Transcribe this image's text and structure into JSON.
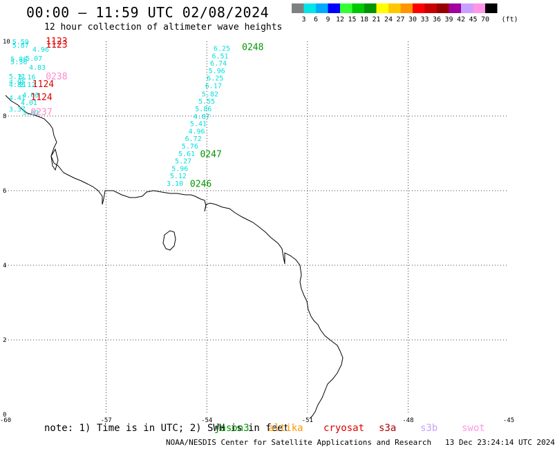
{
  "header": {
    "title": "00:00 – 11:59 UTC 02/08/2024",
    "subtitle": "12 hour collection of altimeter wave heights"
  },
  "colorbar": {
    "labels": [
      "3",
      "6",
      "9",
      "12",
      "15",
      "18",
      "21",
      "24",
      "27",
      "30",
      "33",
      "36",
      "39",
      "42",
      "45",
      "70"
    ],
    "unit": "(ft)",
    "colors": [
      "#808080",
      "#00e6e6",
      "#00aaff",
      "#0000ff",
      "#33ff33",
      "#00c800",
      "#009600",
      "#ffff00",
      "#ffc800",
      "#ff9600",
      "#ff0000",
      "#c80000",
      "#960000",
      "#a000a0",
      "#c8a0ff",
      "#ff96e6",
      "#000000"
    ]
  },
  "map": {
    "x_ticks": [
      "-60",
      "-57",
      "-54",
      "-51",
      "-48",
      "-45"
    ],
    "y_ticks": [
      "0",
      "2",
      "4",
      "6",
      "8",
      "10"
    ],
    "lon_range": [
      -60,
      -45
    ],
    "lat_range": [
      0,
      10
    ]
  },
  "colors": {
    "jason3": "#00dddd",
    "track_label_green": "#009600",
    "track_label_red": "#dd0000",
    "track_label_pink": "#ff88cc"
  },
  "tracks": {
    "left_values": [
      {
        "t": "5.59",
        "lon": -59.8,
        "lat": 9.93
      },
      {
        "t": "5.87",
        "lon": -59.8,
        "lat": 9.83
      },
      {
        "t": "4.96",
        "lon": -59.2,
        "lat": 9.72
      },
      {
        "t": "5.07",
        "lon": -59.4,
        "lat": 9.48
      },
      {
        "t": "5.86",
        "lon": -59.85,
        "lat": 9.46
      },
      {
        "t": "5.36",
        "lon": -59.85,
        "lat": 9.39
      },
      {
        "t": "4.83",
        "lon": -59.3,
        "lat": 9.24
      },
      {
        "t": "5.11",
        "lon": -59.9,
        "lat": 9.0
      },
      {
        "t": "5.16",
        "lon": -59.6,
        "lat": 8.98
      },
      {
        "t": "4.95",
        "lon": -59.9,
        "lat": 8.85
      },
      {
        "t": "4.85",
        "lon": -59.9,
        "lat": 8.78
      },
      {
        "t": "5.12",
        "lon": -59.6,
        "lat": 8.78
      },
      {
        "t": "4.00",
        "lon": -59.5,
        "lat": 8.5
      },
      {
        "t": "4.41",
        "lon": -59.9,
        "lat": 8.43
      },
      {
        "t": "4.01",
        "lon": -59.55,
        "lat": 8.3
      },
      {
        "t": "3.37",
        "lon": -59.9,
        "lat": 8.12
      },
      {
        "t": "3.02",
        "lon": -59.5,
        "lat": 8.03
      }
    ],
    "right_values": [
      {
        "t": "6.25",
        "lon": -53.8,
        "lat": 9.75
      },
      {
        "t": "6.51",
        "lon": -53.85,
        "lat": 9.55
      },
      {
        "t": "6.74",
        "lon": -53.9,
        "lat": 9.35
      },
      {
        "t": "5.96",
        "lon": -53.95,
        "lat": 9.15
      },
      {
        "t": "6.25",
        "lon": -54.0,
        "lat": 8.95
      },
      {
        "t": "6.17",
        "lon": -54.05,
        "lat": 8.75
      },
      {
        "t": "5.82",
        "lon": -54.15,
        "lat": 8.53
      },
      {
        "t": "5.55",
        "lon": -54.25,
        "lat": 8.33
      },
      {
        "t": "5.86",
        "lon": -54.35,
        "lat": 8.13
      },
      {
        "t": "4.87",
        "lon": -54.4,
        "lat": 7.93
      },
      {
        "t": "5.41",
        "lon": -54.5,
        "lat": 7.73
      },
      {
        "t": "4.96",
        "lon": -54.55,
        "lat": 7.53
      },
      {
        "t": "6.72",
        "lon": -54.65,
        "lat": 7.33
      },
      {
        "t": "5.76",
        "lon": -54.75,
        "lat": 7.13
      },
      {
        "t": "5.61",
        "lon": -54.85,
        "lat": 6.93
      },
      {
        "t": "5.27",
        "lon": -54.95,
        "lat": 6.73
      },
      {
        "t": "5.96",
        "lon": -55.05,
        "lat": 6.53
      },
      {
        "t": "5.12",
        "lon": -55.1,
        "lat": 6.33
      },
      {
        "t": "3.10",
        "lon": -55.2,
        "lat": 6.13
      }
    ],
    "time_labels": [
      {
        "t": "1123",
        "lon": -58.8,
        "lat": 9.93,
        "color": "#dd0000"
      },
      {
        "t": "1123",
        "lon": -58.8,
        "lat": 9.83,
        "color": "#dd0000"
      },
      {
        "t": "0248",
        "lon": -52.95,
        "lat": 9.77,
        "color": "#009600"
      },
      {
        "t": "0238",
        "lon": -58.8,
        "lat": 8.98,
        "color": "#ff88cc"
      },
      {
        "t": "1124",
        "lon": -59.2,
        "lat": 8.78,
        "color": "#dd0000"
      },
      {
        "t": "1124",
        "lon": -59.25,
        "lat": 8.43,
        "color": "#dd0000"
      },
      {
        "t": "0237",
        "lon": -59.25,
        "lat": 8.03,
        "color": "#ff88cc"
      },
      {
        "t": "0247",
        "lon": -54.2,
        "lat": 6.9,
        "color": "#009600"
      },
      {
        "t": "0246",
        "lon": -54.5,
        "lat": 6.1,
        "color": "#009600"
      }
    ]
  },
  "footer": {
    "note": "note: 1) Time is in UTC; 2) SWH is in feet",
    "satellites": [
      {
        "name": "jason3",
        "color": "#009600"
      },
      {
        "name": "altika",
        "color": "#ff9600"
      },
      {
        "name": "cryosat",
        "color": "#dd0000"
      },
      {
        "name": "s3a",
        "color": "#aa0000"
      },
      {
        "name": "s3b",
        "color": "#c8a0ff"
      },
      {
        "name": "swot",
        "color": "#ff96e6"
      }
    ],
    "credit": "NOAA/NESDIS Center for Satellite Applications and Research",
    "timestamp": "13 Dec 23:24:14 UTC 2024"
  }
}
